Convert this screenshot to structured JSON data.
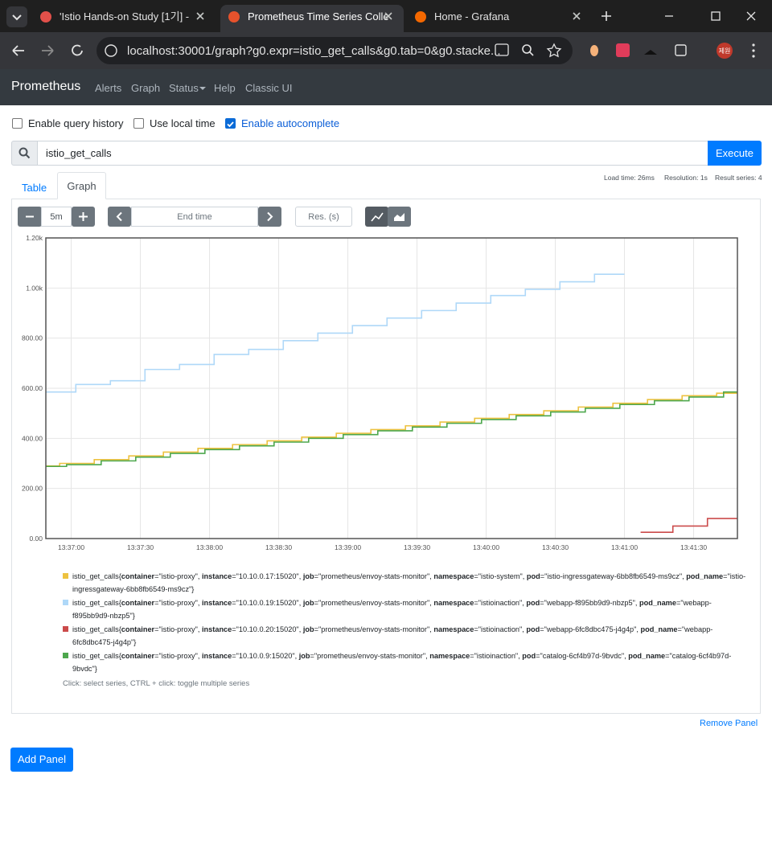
{
  "browser": {
    "tabs": [
      "'Istio Hands-on Study [1기] -",
      "Prometheus Time Series Colle",
      "Home - Grafana"
    ],
    "url": "localhost:30001/graph?g0.expr=istio_get_calls&g0.tab=0&g0.stacke...",
    "profile": "제원"
  },
  "nav": {
    "brand": "Prometheus",
    "links": [
      "Alerts",
      "Graph",
      "Status",
      "Help",
      "Classic UI"
    ]
  },
  "options": [
    {
      "label": "Enable query history",
      "checked": false
    },
    {
      "label": "Use local time",
      "checked": false
    },
    {
      "label": "Enable autocomplete",
      "checked": true
    }
  ],
  "query": "istio_get_calls",
  "execute": "Execute",
  "tabs": [
    "Table",
    "Graph"
  ],
  "stats": [
    "Load time: 26ms",
    "Resolution: 1s",
    "Result series: 4"
  ],
  "controls": {
    "range": "5m",
    "end_time": "End time",
    "resolution": "Res. (s)"
  },
  "chart_data": {
    "type": "line",
    "step": true,
    "xlim": [
      "13:36:49",
      "13:41:49"
    ],
    "xticks": [
      "13:37:00",
      "13:37:30",
      "13:38:00",
      "13:38:30",
      "13:39:00",
      "13:39:30",
      "13:40:00",
      "13:40:30",
      "13:41:00",
      "13:41:30"
    ],
    "ylim": [
      0,
      1200
    ],
    "yticks": [
      {
        "value": 0,
        "label": "0.00"
      },
      {
        "value": 200,
        "label": "200.00"
      },
      {
        "value": 400,
        "label": "400.00"
      },
      {
        "value": 600,
        "label": "600.00"
      },
      {
        "value": 800,
        "label": "800.00"
      },
      {
        "value": 1000,
        "label": "1.00k"
      },
      {
        "value": 1200,
        "label": "1.20k"
      }
    ],
    "grid": true,
    "series": [
      {
        "name": "istio_get_calls{container=\"istio-proxy\", instance=\"10.10.0.17:15020\", job=\"prometheus/envoy-stats-monitor\", namespace=\"istio-system\", pod=\"istio-ingressgateway-6bb8fb6549-ms9cz\", pod_name=\"istio-ingressgateway-6bb8fb6549-ms9cz\"}",
        "color": "#edc240",
        "x": [
          "13:36:49",
          "13:36:55",
          "13:37:10",
          "13:37:25",
          "13:37:40",
          "13:37:55",
          "13:38:10",
          "13:38:25",
          "13:38:40",
          "13:38:55",
          "13:39:10",
          "13:39:25",
          "13:39:40",
          "13:39:55",
          "13:40:10",
          "13:40:25",
          "13:40:40",
          "13:40:55",
          "13:41:10",
          "13:41:25",
          "13:41:40",
          "13:41:49"
        ],
        "values": [
          290,
          300,
          315,
          330,
          345,
          360,
          375,
          390,
          405,
          420,
          435,
          450,
          465,
          480,
          495,
          510,
          525,
          540,
          555,
          570,
          580,
          580
        ]
      },
      {
        "name": "istio_get_calls{container=\"istio-proxy\", instance=\"10.10.0.19:15020\", job=\"prometheus/envoy-stats-monitor\", namespace=\"istioinaction\", pod=\"webapp-f895bb9d9-nbzp5\", pod_name=\"webapp-f895bb9d9-nbzp5\"}",
        "color": "#afd8f8",
        "x": [
          "13:36:49",
          "13:37:02",
          "13:37:17",
          "13:37:32",
          "13:37:47",
          "13:38:02",
          "13:38:17",
          "13:38:32",
          "13:38:47",
          "13:39:02",
          "13:39:17",
          "13:39:32",
          "13:39:47",
          "13:40:02",
          "13:40:17",
          "13:40:32",
          "13:40:47",
          "13:41:00"
        ],
        "values": [
          585,
          615,
          630,
          675,
          695,
          735,
          755,
          790,
          820,
          850,
          880,
          910,
          940,
          970,
          995,
          1025,
          1055,
          1055
        ]
      },
      {
        "name": "istio_get_calls{container=\"istio-proxy\", instance=\"10.10.0.20:15020\", job=\"prometheus/envoy-stats-monitor\", namespace=\"istioinaction\", pod=\"webapp-6fc8dbc475-j4g4p\", pod_name=\"webapp-6fc8dbc475-j4g4p\"}",
        "color": "#cb4b4b",
        "x": [
          "13:41:07",
          "13:41:21",
          "13:41:36",
          "13:41:49"
        ],
        "values": [
          25,
          50,
          80,
          80
        ]
      },
      {
        "name": "istio_get_calls{container=\"istio-proxy\", instance=\"10.10.0.9:15020\", job=\"prometheus/envoy-stats-monitor\", namespace=\"istioinaction\", pod=\"catalog-6cf4b97d-9bvdc\", pod_name=\"catalog-6cf4b97d-9bvdc\"}",
        "color": "#4da74d",
        "x": [
          "13:36:49",
          "13:36:58",
          "13:37:13",
          "13:37:28",
          "13:37:43",
          "13:37:58",
          "13:38:13",
          "13:38:28",
          "13:38:43",
          "13:38:58",
          "13:39:13",
          "13:39:28",
          "13:39:43",
          "13:39:58",
          "13:40:13",
          "13:40:28",
          "13:40:43",
          "13:40:58",
          "13:41:13",
          "13:41:28",
          "13:41:43",
          "13:41:49"
        ],
        "values": [
          288,
          295,
          310,
          325,
          340,
          355,
          370,
          385,
          400,
          415,
          430,
          445,
          460,
          475,
          490,
          505,
          520,
          535,
          550,
          565,
          585,
          585
        ]
      }
    ]
  },
  "legend_hint": "Click: select series, CTRL + click: toggle multiple series",
  "remove_panel": "Remove Panel",
  "add_panel": "Add Panel"
}
